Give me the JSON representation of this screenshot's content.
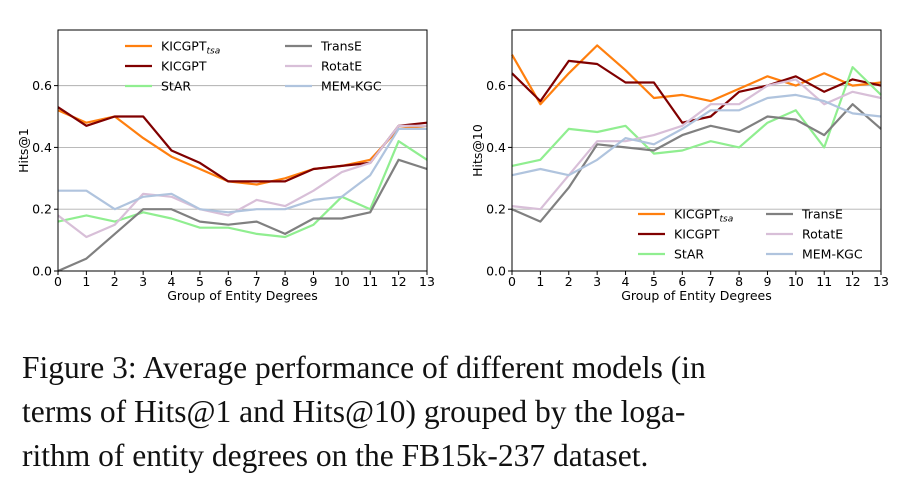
{
  "chart_data": [
    {
      "type": "line",
      "xlabel": "Group of Entity Degrees",
      "ylabel": "Hits@1",
      "x": [
        0,
        1,
        2,
        3,
        4,
        5,
        6,
        7,
        8,
        9,
        10,
        11,
        12,
        13
      ],
      "xticks": [
        "0",
        "1",
        "2",
        "3",
        "4",
        "5",
        "6",
        "7",
        "8",
        "9",
        "10",
        "11",
        "12",
        "13"
      ],
      "xlim": [
        0,
        13
      ],
      "ylim": [
        0,
        0.78
      ],
      "yticks": [
        "0.0",
        "0.2",
        "0.4",
        "0.6"
      ],
      "grid": "horizontal",
      "legend": {
        "placement": "top-center",
        "columns": 2
      },
      "series": [
        {
          "name": "KICGPT",
          "name_sub": "tsa",
          "color": "#ff7f0e",
          "values": [
            0.52,
            0.48,
            0.5,
            0.43,
            0.37,
            0.33,
            0.29,
            0.28,
            0.3,
            0.33,
            0.34,
            0.36,
            0.46,
            0.47
          ]
        },
        {
          "name": "KICGPT",
          "color": "#800000",
          "values": [
            0.53,
            0.47,
            0.5,
            0.5,
            0.39,
            0.35,
            0.29,
            0.29,
            0.29,
            0.33,
            0.34,
            0.35,
            0.47,
            0.48
          ]
        },
        {
          "name": "StAR",
          "color": "#90ee90",
          "values": [
            0.16,
            0.18,
            0.16,
            0.19,
            0.17,
            0.14,
            0.14,
            0.12,
            0.11,
            0.15,
            0.24,
            0.2,
            0.42,
            0.36
          ]
        },
        {
          "name": "TransE",
          "color": "#808080",
          "values": [
            0.0,
            0.04,
            0.12,
            0.2,
            0.2,
            0.16,
            0.15,
            0.16,
            0.12,
            0.17,
            0.17,
            0.19,
            0.36,
            0.33
          ]
        },
        {
          "name": "RotatE",
          "color": "#d8bfd8",
          "values": [
            0.18,
            0.11,
            0.15,
            0.25,
            0.24,
            0.2,
            0.18,
            0.23,
            0.21,
            0.26,
            0.32,
            0.35,
            0.47,
            0.47
          ]
        },
        {
          "name": "MEM-KGC",
          "color": "#b0c4de",
          "values": [
            0.26,
            0.26,
            0.2,
            0.24,
            0.25,
            0.2,
            0.19,
            0.2,
            0.2,
            0.23,
            0.24,
            0.31,
            0.46,
            0.46
          ]
        }
      ]
    },
    {
      "type": "line",
      "xlabel": "Group of Entity Degrees",
      "ylabel": "Hits@10",
      "x": [
        0,
        1,
        2,
        3,
        4,
        5,
        6,
        7,
        8,
        9,
        10,
        11,
        12,
        13
      ],
      "xticks": [
        "0",
        "1",
        "2",
        "3",
        "4",
        "5",
        "6",
        "7",
        "8",
        "9",
        "10",
        "11",
        "12",
        "13"
      ],
      "xlim": [
        0,
        13
      ],
      "ylim": [
        0,
        0.78
      ],
      "yticks": [
        "0.0",
        "0.2",
        "0.4",
        "0.6"
      ],
      "grid": "horizontal",
      "legend": {
        "placement": "lower-right",
        "columns": 2
      },
      "series": [
        {
          "name": "KICGPT",
          "name_sub": "tsa",
          "color": "#ff7f0e",
          "values": [
            0.7,
            0.54,
            0.64,
            0.73,
            0.65,
            0.56,
            0.57,
            0.55,
            0.59,
            0.63,
            0.6,
            0.64,
            0.6,
            0.61
          ]
        },
        {
          "name": "KICGPT",
          "color": "#800000",
          "values": [
            0.64,
            0.55,
            0.68,
            0.67,
            0.61,
            0.61,
            0.48,
            0.5,
            0.58,
            0.6,
            0.63,
            0.58,
            0.62,
            0.6
          ]
        },
        {
          "name": "StAR",
          "color": "#90ee90",
          "values": [
            0.34,
            0.36,
            0.46,
            0.45,
            0.47,
            0.38,
            0.39,
            0.42,
            0.4,
            0.48,
            0.52,
            0.4,
            0.66,
            0.57
          ]
        },
        {
          "name": "TransE",
          "color": "#808080",
          "values": [
            0.2,
            0.16,
            0.27,
            0.41,
            0.4,
            0.39,
            0.44,
            0.47,
            0.45,
            0.5,
            0.49,
            0.44,
            0.54,
            0.46
          ]
        },
        {
          "name": "RotatE",
          "color": "#d8bfd8",
          "values": [
            0.21,
            0.2,
            0.31,
            0.42,
            0.42,
            0.44,
            0.47,
            0.54,
            0.54,
            0.6,
            0.62,
            0.54,
            0.58,
            0.56
          ]
        },
        {
          "name": "MEM-KGC",
          "color": "#b0c4de",
          "values": [
            0.31,
            0.33,
            0.31,
            0.36,
            0.43,
            0.41,
            0.46,
            0.52,
            0.52,
            0.56,
            0.57,
            0.55,
            0.51,
            0.5
          ]
        }
      ]
    }
  ],
  "caption": {
    "lines": [
      "Figure 3: Average performance of different models (in",
      "terms of Hits@1 and Hits@10) grouped by the loga-",
      "rithm of entity degrees on the FB15k-237 dataset."
    ]
  }
}
